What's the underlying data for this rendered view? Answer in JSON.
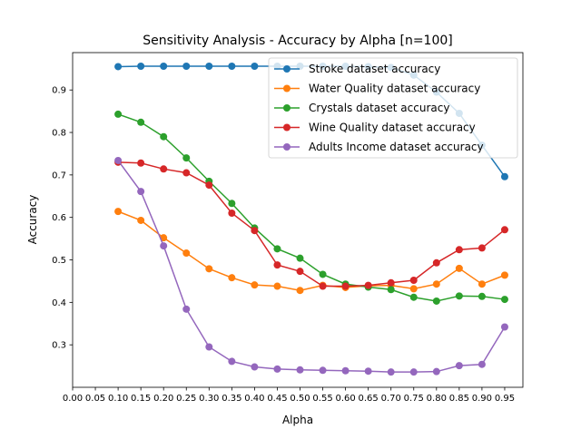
{
  "chart_data": {
    "type": "line",
    "title": "Sensitivity Analysis - Accuracy by Alpha [n=100]",
    "xlabel": "Alpha",
    "ylabel": "Accuracy",
    "xlim": [
      0.0,
      0.99
    ],
    "ylim": [
      0.2,
      0.988
    ],
    "xticks": [
      "0.00",
      "0.05",
      "0.10",
      "0.15",
      "0.20",
      "0.25",
      "0.30",
      "0.35",
      "0.40",
      "0.45",
      "0.50",
      "0.55",
      "0.60",
      "0.65",
      "0.70",
      "0.75",
      "0.80",
      "0.85",
      "0.90",
      "0.95"
    ],
    "yticks": [
      "0.3",
      "0.4",
      "0.5",
      "0.6",
      "0.7",
      "0.8",
      "0.9"
    ],
    "grid": false,
    "legend_position": "upper right",
    "x": [
      0.1,
      0.15,
      0.2,
      0.25,
      0.3,
      0.35,
      0.4,
      0.45,
      0.5,
      0.55,
      0.6,
      0.65,
      0.7,
      0.75,
      0.8,
      0.85,
      0.9,
      0.95
    ],
    "series": [
      {
        "name": "Stroke dataset accuracy",
        "color": "#1f77b4",
        "values": [
          0.955,
          0.956,
          0.956,
          0.956,
          0.956,
          0.956,
          0.956,
          0.956,
          0.956,
          0.956,
          0.956,
          0.955,
          0.953,
          0.935,
          0.895,
          0.845,
          0.77,
          0.696
        ]
      },
      {
        "name": "Water Quality dataset accuracy",
        "color": "#ff7f0e",
        "values": [
          0.614,
          0.593,
          0.552,
          0.516,
          0.479,
          0.458,
          0.441,
          0.438,
          0.428,
          0.44,
          0.435,
          0.439,
          0.44,
          0.432,
          0.443,
          0.48,
          0.443,
          0.464
        ]
      },
      {
        "name": "Crystals dataset accuracy",
        "color": "#2ca02c",
        "values": [
          0.843,
          0.824,
          0.79,
          0.74,
          0.685,
          0.633,
          0.575,
          0.526,
          0.504,
          0.466,
          0.443,
          0.436,
          0.43,
          0.412,
          0.403,
          0.415,
          0.414,
          0.407
        ]
      },
      {
        "name": "Wine Quality dataset accuracy",
        "color": "#d62728",
        "values": [
          0.73,
          0.728,
          0.714,
          0.705,
          0.676,
          0.61,
          0.569,
          0.488,
          0.473,
          0.438,
          0.438,
          0.44,
          0.446,
          0.452,
          0.493,
          0.524,
          0.528,
          0.571
        ]
      },
      {
        "name": "Adults Income dataset accuracy",
        "color": "#9467bd",
        "values": [
          0.734,
          0.661,
          0.533,
          0.384,
          0.295,
          0.261,
          0.248,
          0.243,
          0.241,
          0.24,
          0.239,
          0.238,
          0.236,
          0.236,
          0.237,
          0.251,
          0.254,
          0.342
        ]
      }
    ]
  }
}
